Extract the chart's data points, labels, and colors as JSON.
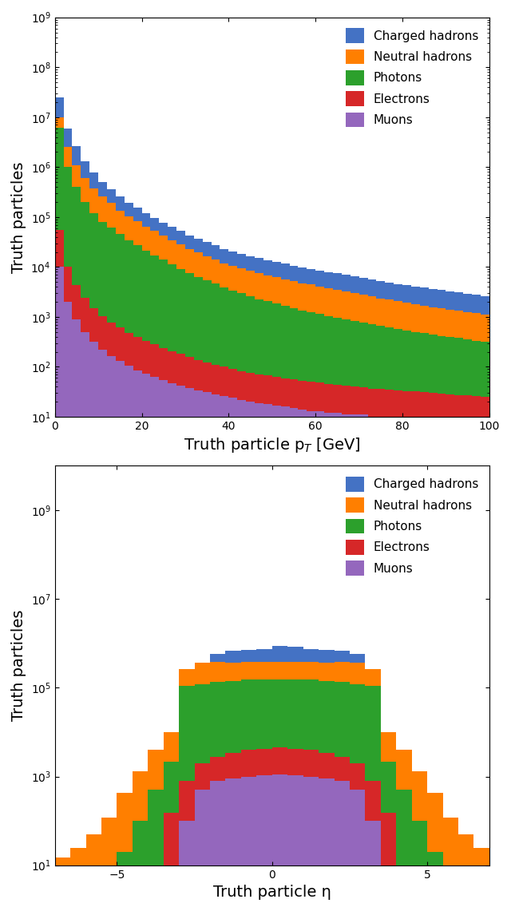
{
  "colors": {
    "charged_hadrons": "#4472C4",
    "neutral_hadrons": "#FF7F00",
    "photons": "#2CA02C",
    "electrons": "#D62728",
    "muons": "#9467BD"
  },
  "legend_labels": [
    "Charged hadrons",
    "Neutral hadrons",
    "Photons",
    "Electrons",
    "Muons"
  ],
  "pt_xlabel": "Truth particle p$_T$ [GeV]",
  "pt_ylabel": "Truth particles",
  "eta_xlabel": "Truth particle η",
  "eta_ylabel": "Truth particles",
  "pt_bins": [
    0,
    2,
    4,
    6,
    8,
    10,
    12,
    14,
    16,
    18,
    20,
    22,
    24,
    26,
    28,
    30,
    32,
    34,
    36,
    38,
    40,
    42,
    44,
    46,
    48,
    50,
    52,
    54,
    56,
    58,
    60,
    62,
    64,
    66,
    68,
    70,
    72,
    74,
    76,
    78,
    80,
    82,
    84,
    86,
    88,
    90,
    92,
    94,
    96,
    98,
    100
  ],
  "pt_charged": [
    15000000.0,
    3500000.0,
    1500000.0,
    700000.0,
    400000.0,
    250000.0,
    170000.0,
    120000.0,
    90000.0,
    70000.0,
    55000.0,
    45000.0,
    35000.0,
    30000.0,
    25000.0,
    20000.0,
    17000.0,
    15000.0,
    13000.0,
    11000.0,
    10000.0,
    9000.0,
    8000.0,
    7500.0,
    7000.0,
    6500.0,
    6000.0,
    5500.0,
    5000.0,
    4800.0,
    4500.0,
    4200.0,
    4000.0,
    3800.0,
    3500.0,
    3300.0,
    3000.0,
    2800.0,
    2700.0,
    2500.0,
    2400.0,
    2300.0,
    2200.0,
    2100.0,
    2000.0,
    1900.0,
    1800.0,
    1700.0,
    1600.0,
    1500.0
  ],
  "pt_neutral": [
    4000000.0,
    1500000.0,
    700000.0,
    400000.0,
    250000.0,
    180000.0,
    130000.0,
    90000.0,
    70000.0,
    55000.0,
    43000.0,
    35000.0,
    28000.0,
    23000.0,
    19000.0,
    15000.0,
    13000.0,
    11000.0,
    9500.0,
    8000.0,
    7000.0,
    6500.0,
    5800.0,
    5300.0,
    4800.0,
    4400.0,
    4000.0,
    3700.0,
    3400.0,
    3200.0,
    2900.0,
    2700.0,
    2500.0,
    2300.0,
    2200.0,
    2000.0,
    1900.0,
    1700.0,
    1600.0,
    1500.0,
    1400.0,
    1300.0,
    1200.0,
    1100.0,
    1100.0,
    1000.0,
    950,
    900,
    850,
    800
  ],
  "pt_photons": [
    6000000.0,
    1000000.0,
    400000.0,
    200000.0,
    120000.0,
    80000.0,
    60000.0,
    45000.0,
    34000.0,
    27000.0,
    21000.0,
    17000.0,
    14000.0,
    11000.0,
    9000.0,
    7500.0,
    6200.0,
    5300.0,
    4500.0,
    3800.0,
    3300.0,
    2900.0,
    2500.0,
    2200.0,
    2000.0,
    1800.0,
    1600.0,
    1450.0,
    1300.0,
    1200.0,
    1100.0,
    1000.0,
    920,
    850,
    780,
    720,
    670,
    620,
    580,
    540,
    500,
    470,
    440,
    410,
    390,
    370,
    350,
    330,
    310,
    290
  ],
  "pt_electrons": [
    45000.0,
    8000.0,
    3500.0,
    1900.0,
    1200.0,
    800,
    600,
    480,
    380,
    310,
    260,
    220,
    185,
    160,
    140,
    120,
    105,
    92,
    82,
    74,
    67,
    61,
    56,
    52,
    49,
    46,
    43,
    41,
    39,
    37,
    35,
    34,
    32,
    31,
    29,
    28,
    27,
    26,
    25,
    24,
    23,
    22,
    21,
    20,
    19,
    18,
    17,
    17,
    16,
    15
  ],
  "pt_muons": [
    10000.0,
    2000.0,
    900,
    500,
    320,
    220,
    165,
    130,
    104,
    85,
    72,
    62,
    54,
    47,
    42,
    38,
    34,
    31,
    28,
    26,
    24,
    22,
    20,
    19,
    18,
    17,
    16,
    15,
    14,
    13,
    13,
    12,
    12,
    11,
    11,
    11,
    10,
    10,
    10,
    10,
    10,
    10,
    10,
    10,
    10,
    10,
    10,
    10,
    10,
    10
  ],
  "eta_bins": [
    -7.0,
    -6.5,
    -6.0,
    -5.5,
    -5.0,
    -4.5,
    -4.0,
    -3.5,
    -3.0,
    -2.5,
    -2.0,
    -1.5,
    -1.0,
    -0.5,
    0.0,
    0.5,
    1.0,
    1.5,
    2.0,
    2.5,
    3.0,
    3.5,
    4.0,
    4.5,
    5.0,
    5.5,
    6.0,
    6.5,
    7.0
  ],
  "eta_charged": [
    0,
    0,
    0,
    0,
    0,
    0,
    0,
    0,
    0,
    0,
    200000.0,
    300000.0,
    350000.0,
    380000.0,
    500000.0,
    450000.0,
    380000.0,
    350000.0,
    300000.0,
    200000.0,
    0,
    0,
    0,
    0,
    0,
    0,
    0,
    0
  ],
  "eta_neutral": [
    15,
    25,
    50,
    120,
    400,
    1200,
    3500,
    8000,
    150000.0,
    250000.0,
    250000.0,
    230000.0,
    220000.0,
    220000.0,
    230000.0,
    220000.0,
    220000.0,
    230000.0,
    250000.0,
    250000.0,
    150000.0,
    8000,
    3500,
    1200,
    400,
    120,
    50,
    25
  ],
  "eta_photons": [
    0,
    0,
    0,
    0,
    20,
    100,
    500,
    2000,
    110000.0,
    120000.0,
    130000.0,
    140000.0,
    150000.0,
    150000.0,
    150000.0,
    150000.0,
    150000.0,
    140000.0,
    130000.0,
    120000.0,
    110000.0,
    2000,
    500,
    100,
    20,
    0,
    0,
    0
  ],
  "eta_electrons": [
    0,
    0,
    0,
    0,
    0,
    0,
    0,
    150,
    700,
    1500,
    2000,
    2500,
    3000,
    3200,
    3500,
    3200,
    3000,
    2500,
    2000,
    1500,
    700,
    150,
    0,
    0,
    0,
    0,
    0,
    0
  ],
  "eta_muons": [
    0,
    0,
    0,
    0,
    0,
    0,
    0,
    0,
    100,
    500,
    800,
    900,
    1000,
    1050,
    1100,
    1050,
    1000,
    900,
    800,
    500,
    100,
    0,
    0,
    0,
    0,
    0,
    0,
    0
  ]
}
